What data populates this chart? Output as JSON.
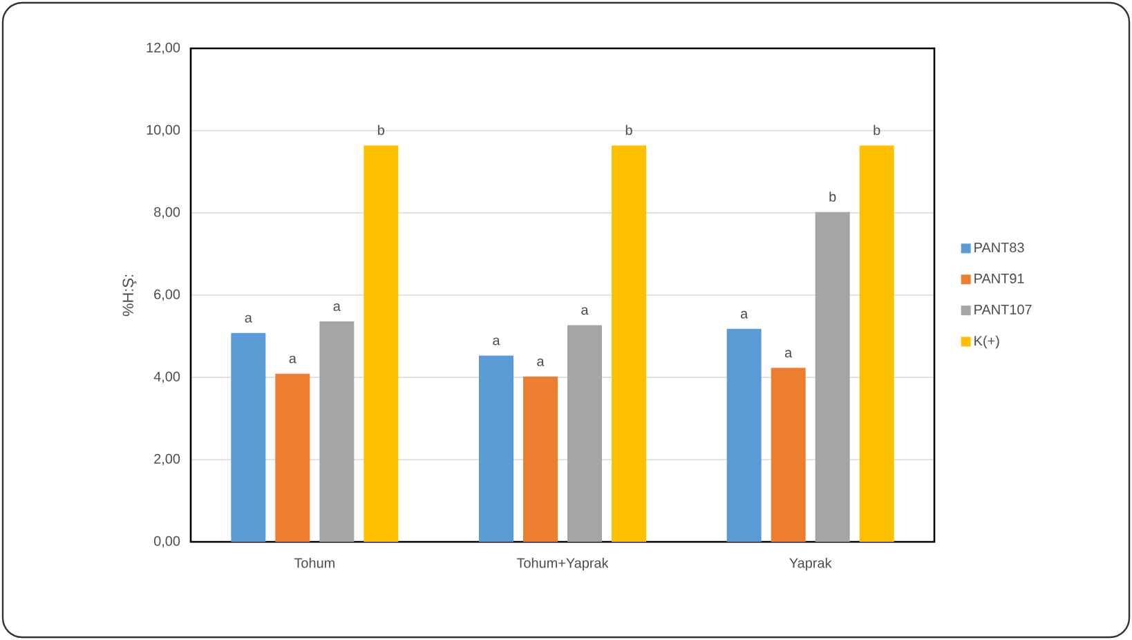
{
  "chart_data": {
    "type": "bar",
    "ylabel": "%H:Ş:",
    "categories": [
      "Tohum",
      "Tohum+Yaprak",
      "Yaprak"
    ],
    "series": [
      {
        "name": "PANT83",
        "color": "#5b9bd5",
        "values": [
          5.08,
          4.53,
          5.18
        ],
        "value_labels": [
          "a",
          "a",
          "a"
        ]
      },
      {
        "name": "PANT91",
        "color": "#ed7d31",
        "values": [
          4.09,
          4.02,
          4.23
        ],
        "value_labels": [
          "a",
          "a",
          "a"
        ]
      },
      {
        "name": "PANT107",
        "color": "#a5a5a5",
        "values": [
          5.36,
          5.27,
          8.02
        ],
        "value_labels": [
          "a",
          "a",
          "b"
        ]
      },
      {
        "name": "K(+)",
        "color": "#ffc000",
        "values": [
          9.64,
          9.64,
          9.64
        ],
        "value_labels": [
          "b",
          "b",
          "b"
        ]
      }
    ],
    "ylim": [
      0,
      12
    ],
    "yticks": [
      {
        "value": 0,
        "label": "0,00"
      },
      {
        "value": 2,
        "label": "2,00"
      },
      {
        "value": 4,
        "label": "4,00"
      },
      {
        "value": 6,
        "label": "6,00"
      },
      {
        "value": 8,
        "label": "8,00"
      },
      {
        "value": 10,
        "label": "10,00"
      },
      {
        "value": 12,
        "label": "12,00"
      }
    ],
    "grid": "y",
    "legend": "right"
  }
}
